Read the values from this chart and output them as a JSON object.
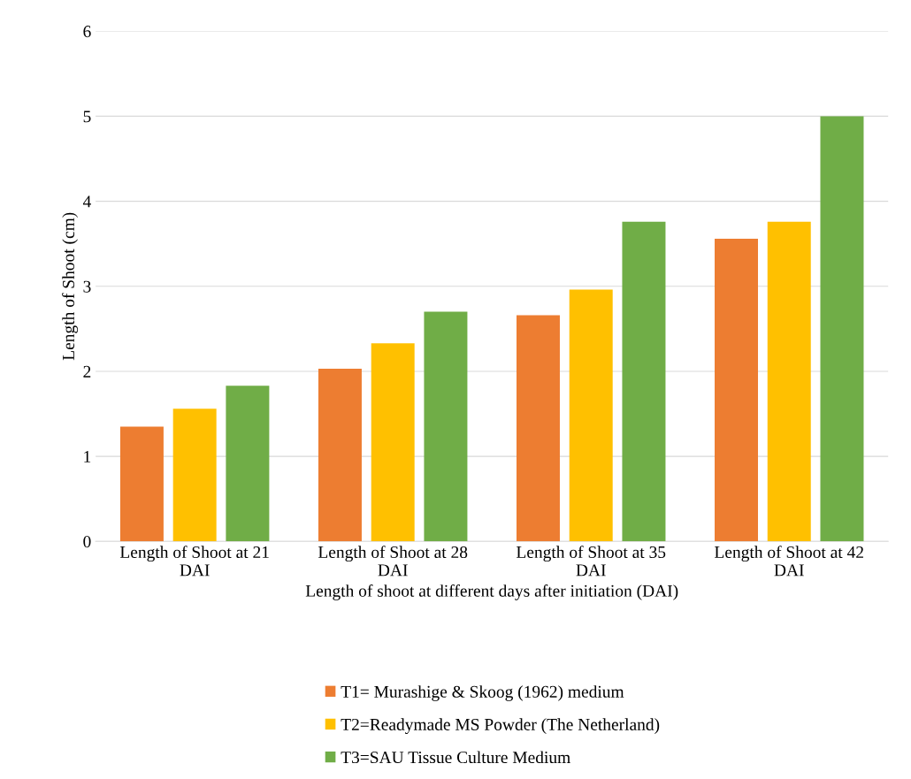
{
  "chart_data": {
    "type": "bar",
    "xlabel": "Length of shoot at different days after initiation (DAI)",
    "ylabel": "Length of Shoot (cm)",
    "categories": [
      "Length of Shoot at 21 DAI",
      "Length of Shoot at 28 DAI",
      "Length of Shoot at 35 DAI",
      "Length of Shoot at 42 DAI"
    ],
    "series": [
      {
        "name": "T1= Murashige & Skoog (1962) medium",
        "color": "#ed7d31",
        "values": [
          1.35,
          2.03,
          2.66,
          3.56
        ]
      },
      {
        "name": "T2=Readymade MS Powder (The Netherland)",
        "color": "#ffc000",
        "values": [
          1.56,
          2.33,
          2.96,
          3.76
        ]
      },
      {
        "name": "T3=SAU Tissue Culture Medium",
        "color": "#70ad47",
        "values": [
          1.83,
          2.7,
          3.76,
          5.0
        ]
      }
    ],
    "ylim": [
      0,
      6
    ],
    "yticks": [
      0,
      1,
      2,
      3,
      4,
      5,
      6
    ],
    "grid": "y",
    "legend": "bottom"
  }
}
